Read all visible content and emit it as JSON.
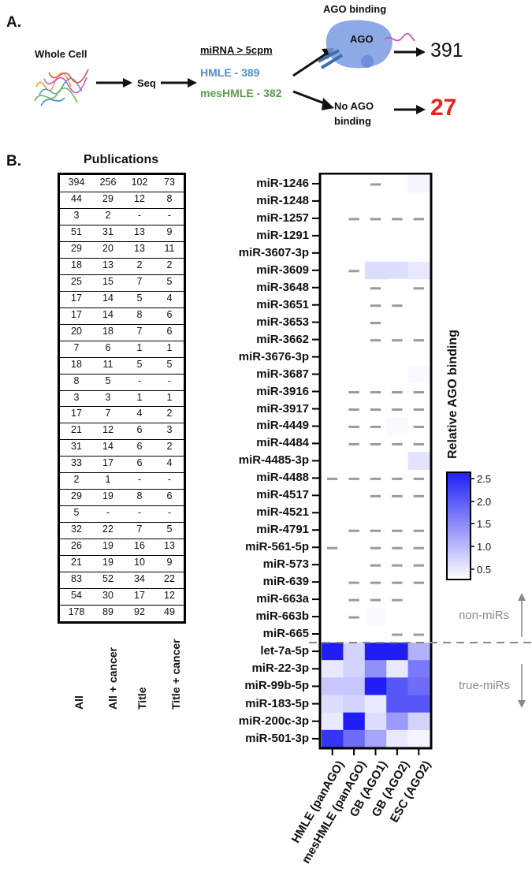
{
  "panel_a": {
    "label": "A.",
    "whole_cell": "Whole Cell",
    "seq": "Seq",
    "threshold": "miRNA > 5cpm",
    "hmle": "HMLE - 389",
    "meshmle": "mesHMLE - 382",
    "ago_binding": "AGO binding",
    "ago_protein": "AGO",
    "bound_count": "391",
    "no_ago_line1": "No AGO",
    "no_ago_line2": "binding",
    "unbound_count": "27",
    "colors": {
      "hmle": "#4f8fd1",
      "meshmle": "#5e9c4f",
      "unbound": "#e8231c",
      "ago": "#7a9be0"
    }
  },
  "panel_b": {
    "label": "B.",
    "publications_title": "Publications",
    "publication_columns": [
      "All",
      "All + cancer",
      "Title",
      "Title + cancer"
    ],
    "publication_rows": [
      [
        "394",
        "256",
        "102",
        "73"
      ],
      [
        "44",
        "29",
        "12",
        "8"
      ],
      [
        "3",
        "2",
        "-",
        "-"
      ],
      [
        "51",
        "31",
        "13",
        "9"
      ],
      [
        "29",
        "20",
        "13",
        "11"
      ],
      [
        "18",
        "13",
        "2",
        "2"
      ],
      [
        "25",
        "15",
        "7",
        "5"
      ],
      [
        "17",
        "14",
        "5",
        "4"
      ],
      [
        "17",
        "14",
        "8",
        "6"
      ],
      [
        "20",
        "18",
        "7",
        "6"
      ],
      [
        "7",
        "6",
        "1",
        "1"
      ],
      [
        "18",
        "11",
        "5",
        "5"
      ],
      [
        "8",
        "5",
        "-",
        "-"
      ],
      [
        "3",
        "3",
        "1",
        "1"
      ],
      [
        "17",
        "7",
        "4",
        "2"
      ],
      [
        "21",
        "12",
        "6",
        "3"
      ],
      [
        "31",
        "14",
        "6",
        "2"
      ],
      [
        "33",
        "17",
        "6",
        "4"
      ],
      [
        "2",
        "1",
        "-",
        "-"
      ],
      [
        "29",
        "19",
        "8",
        "6"
      ],
      [
        "5",
        "-",
        "-",
        "-"
      ],
      [
        "32",
        "22",
        "7",
        "5"
      ],
      [
        "26",
        "19",
        "16",
        "13"
      ],
      [
        "21",
        "19",
        "10",
        "9"
      ],
      [
        "83",
        "52",
        "34",
        "22"
      ],
      [
        "54",
        "30",
        "17",
        "12"
      ],
      [
        "178",
        "89",
        "92",
        "49"
      ]
    ],
    "non_mirs_label": "non-miRs",
    "true_mirs_label": "true-miRs"
  },
  "chart_data": {
    "type": "heatmap",
    "title": "",
    "colorbar_label": "Relative AGO binding",
    "colorbar_ticks": [
      "2.5",
      "2.0",
      "1.5",
      "1.0",
      "0.5"
    ],
    "colorbar_range": [
      0.5,
      2.5
    ],
    "colormap": [
      "#ffffff",
      "#1f1ff5"
    ],
    "columns": [
      "HMLE (panAGO)",
      "mesHMLE (panAGO)",
      "GB (AGO1)",
      "GB (AGO2)",
      "ESC (AGO2)"
    ],
    "rows": [
      "miR-1246",
      "miR-1248",
      "miR-1257",
      "miR-1291",
      "miR-3607-3p",
      "miR-3609",
      "miR-3648",
      "miR-3651",
      "miR-3653",
      "miR-3662",
      "miR-3676-3p",
      "miR-3687",
      "miR-3916",
      "miR-3917",
      "miR-4449",
      "miR-4484",
      "miR-4485-3p",
      "miR-4488",
      "miR-4517",
      "miR-4521",
      "miR-4791",
      "miR-561-5p",
      "miR-573",
      "miR-639",
      "miR-663a",
      "miR-663b",
      "miR-665",
      "let-7a-5p",
      "miR-22-3p",
      "miR-99b-5p",
      "miR-183-5p",
      "miR-200c-3p",
      "miR-501-3p"
    ],
    "values": [
      [
        0.5,
        0.5,
        null,
        0.5,
        0.6
      ],
      [
        0.5,
        0.5,
        0.5,
        0.5,
        0.5
      ],
      [
        0.5,
        null,
        null,
        null,
        null
      ],
      [
        0.5,
        0.5,
        0.5,
        0.5,
        0.5
      ],
      [
        0.5,
        0.5,
        0.5,
        0.5,
        0.5
      ],
      [
        0.5,
        null,
        0.8,
        0.8,
        0.7
      ],
      [
        0.5,
        0.5,
        null,
        0.5,
        null
      ],
      [
        0.5,
        0.5,
        null,
        null,
        0.5
      ],
      [
        0.5,
        0.5,
        null,
        0.5,
        0.5
      ],
      [
        0.5,
        0.5,
        null,
        null,
        null
      ],
      [
        0.5,
        0.5,
        0.5,
        0.5,
        0.5
      ],
      [
        0.5,
        0.5,
        0.5,
        0.5,
        0.55
      ],
      [
        0.5,
        null,
        null,
        null,
        null
      ],
      [
        0.5,
        null,
        null,
        null,
        null
      ],
      [
        0.5,
        null,
        null,
        0.55,
        null
      ],
      [
        0.5,
        null,
        null,
        null,
        null
      ],
      [
        0.5,
        0.5,
        0.5,
        0.5,
        0.75
      ],
      [
        null,
        null,
        null,
        null,
        null
      ],
      [
        0.5,
        0.5,
        null,
        null,
        null
      ],
      [
        0.5,
        0.5,
        0.5,
        0.5,
        0.5
      ],
      [
        0.5,
        null,
        null,
        null,
        null
      ],
      [
        null,
        0.5,
        null,
        null,
        null
      ],
      [
        0.5,
        0.5,
        null,
        null,
        null
      ],
      [
        0.5,
        null,
        null,
        null,
        null
      ],
      [
        0.5,
        null,
        null,
        null,
        0.5
      ],
      [
        0.5,
        null,
        0.55,
        0.5,
        0.5
      ],
      [
        0.5,
        0.5,
        0.5,
        null,
        null
      ],
      [
        2.5,
        0.9,
        2.5,
        2.5,
        1.2
      ],
      [
        0.7,
        0.9,
        1.5,
        0.7,
        1.7
      ],
      [
        1.0,
        1.0,
        2.5,
        2.0,
        1.8
      ],
      [
        0.8,
        0.9,
        0.7,
        2.0,
        2.0
      ],
      [
        0.7,
        2.5,
        0.8,
        1.4,
        0.9
      ],
      [
        2.3,
        1.8,
        1.3,
        0.7,
        0.6
      ]
    ],
    "missing_marker": "dash",
    "group_split_after_row": "miR-665"
  }
}
